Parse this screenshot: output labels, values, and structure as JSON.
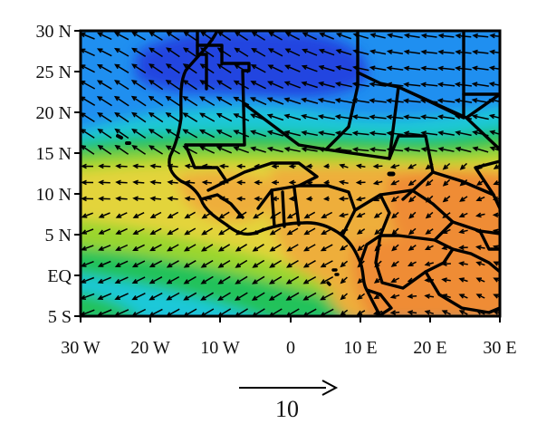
{
  "map": {
    "lon_range": [
      -30,
      30
    ],
    "lat_range": [
      -5,
      30
    ],
    "y_tick_labels": [
      "30 N",
      "25 N",
      "20 N",
      "15 N",
      "10 N",
      "5 N",
      "EQ",
      "5 S"
    ],
    "x_tick_labels": [
      "30 W",
      "20 W",
      "10 W",
      "0",
      "10 E",
      "20 E",
      "30 E"
    ],
    "reference_vector_label": "10",
    "colors": {
      "deep_blue": "#2244e0",
      "blue": "#1f8ff0",
      "cyan": "#1ec8d8",
      "green": "#22c25a",
      "lime": "#9ad62f",
      "yellow": "#e3d43a",
      "orange_light": "#eeae3b",
      "orange": "#ef8c35",
      "coast": "#000000"
    }
  }
}
